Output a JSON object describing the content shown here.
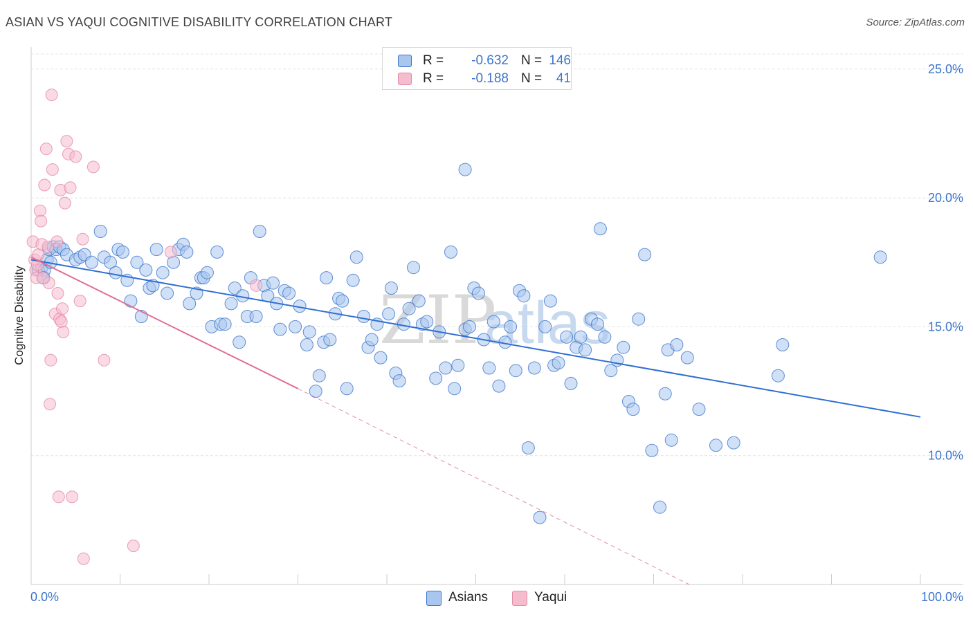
{
  "title": "ASIAN VS YAQUI COGNITIVE DISABILITY CORRELATION CHART",
  "source": "Source: ZipAtlas.com",
  "watermark": {
    "zip": "ZIP",
    "atlas": "atlas"
  },
  "colors": {
    "blue": "#3b74c9",
    "blue_fill": "#a9c6ee",
    "blue_line": "#2f6fd1",
    "pink": "#e28aa7",
    "pink_fill": "#f5bccd",
    "pink_line": "#e06d96",
    "grid": "#e4e4e4",
    "axis": "#cccccc"
  },
  "stats": [
    {
      "swatch": "blue",
      "r_label": "R =",
      "r_value": "-0.632",
      "n_label": "N =",
      "n_value": "146"
    },
    {
      "swatch": "pink",
      "r_label": "R =",
      "r_value": "-0.188",
      "n_label": "N =",
      "n_value": "41"
    }
  ],
  "legend": [
    {
      "swatch": "blue",
      "label": "Asians"
    },
    {
      "swatch": "pink",
      "label": "Yaqui"
    }
  ],
  "chart_data": {
    "type": "scatter",
    "title": "ASIAN VS YAQUI COGNITIVE DISABILITY CORRELATION CHART",
    "xlabel": "",
    "ylabel": "Cognitive Disability",
    "xlim": [
      0,
      100
    ],
    "ylim": [
      5,
      25.8
    ],
    "x_ticks": [
      "0.0%",
      "100.0%"
    ],
    "y_ticks": [
      {
        "value": 10,
        "label": "10.0%"
      },
      {
        "value": 15,
        "label": "15.0%"
      },
      {
        "value": 20,
        "label": "20.0%"
      },
      {
        "value": 25,
        "label": "25.0%"
      }
    ],
    "grid": true,
    "legend_position": "bottom",
    "series": [
      {
        "name": "Asians",
        "color": "#3b74c9",
        "trend": {
          "x": [
            0,
            100
          ],
          "y": [
            17.6,
            11.5
          ],
          "dashed_extension": false
        },
        "points": [
          [
            0.8,
            17.2
          ],
          [
            1.2,
            17.3
          ],
          [
            1.5,
            17.2
          ],
          [
            1.8,
            17.6
          ],
          [
            2.0,
            18.0
          ],
          [
            2.5,
            18.1
          ],
          [
            2.8,
            18.0
          ],
          [
            3.2,
            18.1
          ],
          [
            3.6,
            18.0
          ],
          [
            4.0,
            17.8
          ],
          [
            5.0,
            17.6
          ],
          [
            5.5,
            17.7
          ],
          [
            6.0,
            17.8
          ],
          [
            6.8,
            17.5
          ],
          [
            7.8,
            18.7
          ],
          [
            8.2,
            17.7
          ],
          [
            8.9,
            17.5
          ],
          [
            9.5,
            17.1
          ],
          [
            9.8,
            18.0
          ],
          [
            10.3,
            17.9
          ],
          [
            10.8,
            16.8
          ],
          [
            11.2,
            16.0
          ],
          [
            11.9,
            17.5
          ],
          [
            12.4,
            15.4
          ],
          [
            12.9,
            17.2
          ],
          [
            13.3,
            16.5
          ],
          [
            13.7,
            16.6
          ],
          [
            14.1,
            18.0
          ],
          [
            14.8,
            17.1
          ],
          [
            15.3,
            16.3
          ],
          [
            16.0,
            17.5
          ],
          [
            16.6,
            18.0
          ],
          [
            17.1,
            18.2
          ],
          [
            17.5,
            17.9
          ],
          [
            17.8,
            15.9
          ],
          [
            18.6,
            16.3
          ],
          [
            19.1,
            16.9
          ],
          [
            19.4,
            16.9
          ],
          [
            19.8,
            17.1
          ],
          [
            20.3,
            15.0
          ],
          [
            20.9,
            17.9
          ],
          [
            21.3,
            15.1
          ],
          [
            21.8,
            15.1
          ],
          [
            22.5,
            15.9
          ],
          [
            22.9,
            16.5
          ],
          [
            23.4,
            14.4
          ],
          [
            23.8,
            16.2
          ],
          [
            24.3,
            15.4
          ],
          [
            24.7,
            16.9
          ],
          [
            25.3,
            15.4
          ],
          [
            25.7,
            18.7
          ],
          [
            26.2,
            16.6
          ],
          [
            26.6,
            16.2
          ],
          [
            27.2,
            16.7
          ],
          [
            27.6,
            15.9
          ],
          [
            28.0,
            14.9
          ],
          [
            28.5,
            16.4
          ],
          [
            29.0,
            16.3
          ],
          [
            29.7,
            15.0
          ],
          [
            30.2,
            15.8
          ],
          [
            31.0,
            14.3
          ],
          [
            31.3,
            14.8
          ],
          [
            32.0,
            12.5
          ],
          [
            32.4,
            13.1
          ],
          [
            32.9,
            14.4
          ],
          [
            33.2,
            16.9
          ],
          [
            33.6,
            14.5
          ],
          [
            34.2,
            15.5
          ],
          [
            34.6,
            16.1
          ],
          [
            35.0,
            16.0
          ],
          [
            35.5,
            12.6
          ],
          [
            36.2,
            16.8
          ],
          [
            36.6,
            17.7
          ],
          [
            37.4,
            15.4
          ],
          [
            37.9,
            14.2
          ],
          [
            38.3,
            14.5
          ],
          [
            38.9,
            15.1
          ],
          [
            39.3,
            13.8
          ],
          [
            40.2,
            15.5
          ],
          [
            40.5,
            16.5
          ],
          [
            41.0,
            13.2
          ],
          [
            41.4,
            12.9
          ],
          [
            41.9,
            15.1
          ],
          [
            42.5,
            15.7
          ],
          [
            43.0,
            17.3
          ],
          [
            43.6,
            16.0
          ],
          [
            44.0,
            15.1
          ],
          [
            44.5,
            15.2
          ],
          [
            45.5,
            13.0
          ],
          [
            45.9,
            14.8
          ],
          [
            46.6,
            13.4
          ],
          [
            47.2,
            17.9
          ],
          [
            47.6,
            12.6
          ],
          [
            48.0,
            13.5
          ],
          [
            48.8,
            14.9
          ],
          [
            49.3,
            15.0
          ],
          [
            49.8,
            16.5
          ],
          [
            50.3,
            16.3
          ],
          [
            50.9,
            14.5
          ],
          [
            51.5,
            13.4
          ],
          [
            52.0,
            15.2
          ],
          [
            52.6,
            12.7
          ],
          [
            53.3,
            14.4
          ],
          [
            53.9,
            15.0
          ],
          [
            54.5,
            13.3
          ],
          [
            54.9,
            16.4
          ],
          [
            55.4,
            16.2
          ],
          [
            55.9,
            10.3
          ],
          [
            56.6,
            13.4
          ],
          [
            57.2,
            7.6
          ],
          [
            57.8,
            15.0
          ],
          [
            58.4,
            16.0
          ],
          [
            58.8,
            13.5
          ],
          [
            59.3,
            13.6
          ],
          [
            60.2,
            14.6
          ],
          [
            60.7,
            12.8
          ],
          [
            61.3,
            14.2
          ],
          [
            61.8,
            14.6
          ],
          [
            62.3,
            14.1
          ],
          [
            63.0,
            15.3
          ],
          [
            63.7,
            15.1
          ],
          [
            64.0,
            18.8
          ],
          [
            64.5,
            14.6
          ],
          [
            65.2,
            13.3
          ],
          [
            65.9,
            13.7
          ],
          [
            66.6,
            14.2
          ],
          [
            67.2,
            12.1
          ],
          [
            67.7,
            11.8
          ],
          [
            68.3,
            15.3
          ],
          [
            69.0,
            17.8
          ],
          [
            69.8,
            10.2
          ],
          [
            70.7,
            8.0
          ],
          [
            71.3,
            12.4
          ],
          [
            71.6,
            14.1
          ],
          [
            72.0,
            10.6
          ],
          [
            72.6,
            14.3
          ],
          [
            73.8,
            13.8
          ],
          [
            75.1,
            11.8
          ],
          [
            77.0,
            10.4
          ],
          [
            79.0,
            10.5
          ],
          [
            84.0,
            13.1
          ],
          [
            84.5,
            14.3
          ],
          [
            95.5,
            17.7
          ],
          [
            48.8,
            21.1
          ],
          [
            1.4,
            16.9
          ],
          [
            2.2,
            17.5
          ]
        ]
      },
      {
        "name": "Yaqui",
        "color": "#e28aa7",
        "trend": {
          "x": [
            0,
            30
          ],
          "y": [
            17.7,
            12.6
          ],
          "dashed_extension": true,
          "dashed_to": [
            74,
            5
          ]
        },
        "points": [
          [
            0.2,
            18.3
          ],
          [
            0.4,
            17.6
          ],
          [
            0.5,
            17.2
          ],
          [
            0.6,
            16.9
          ],
          [
            0.7,
            17.4
          ],
          [
            0.8,
            17.8
          ],
          [
            1.0,
            19.5
          ],
          [
            1.1,
            19.1
          ],
          [
            1.2,
            18.2
          ],
          [
            1.3,
            16.9
          ],
          [
            1.5,
            20.5
          ],
          [
            1.7,
            21.9
          ],
          [
            1.9,
            18.1
          ],
          [
            2.0,
            16.7
          ],
          [
            2.1,
            12.0
          ],
          [
            2.2,
            13.7
          ],
          [
            2.3,
            24.0
          ],
          [
            2.4,
            21.1
          ],
          [
            2.7,
            15.5
          ],
          [
            2.9,
            18.3
          ],
          [
            3.0,
            16.3
          ],
          [
            3.2,
            15.3
          ],
          [
            3.3,
            20.3
          ],
          [
            3.4,
            15.2
          ],
          [
            3.5,
            15.7
          ],
          [
            3.6,
            14.8
          ],
          [
            3.8,
            19.8
          ],
          [
            4.0,
            22.2
          ],
          [
            4.2,
            21.7
          ],
          [
            4.4,
            20.4
          ],
          [
            4.6,
            8.4
          ],
          [
            5.0,
            21.6
          ],
          [
            5.5,
            16.0
          ],
          [
            5.8,
            18.4
          ],
          [
            5.9,
            6.0
          ],
          [
            7.0,
            21.2
          ],
          [
            8.2,
            13.7
          ],
          [
            11.5,
            6.5
          ],
          [
            15.7,
            17.9
          ],
          [
            25.3,
            16.6
          ],
          [
            3.1,
            8.4
          ]
        ]
      }
    ]
  }
}
